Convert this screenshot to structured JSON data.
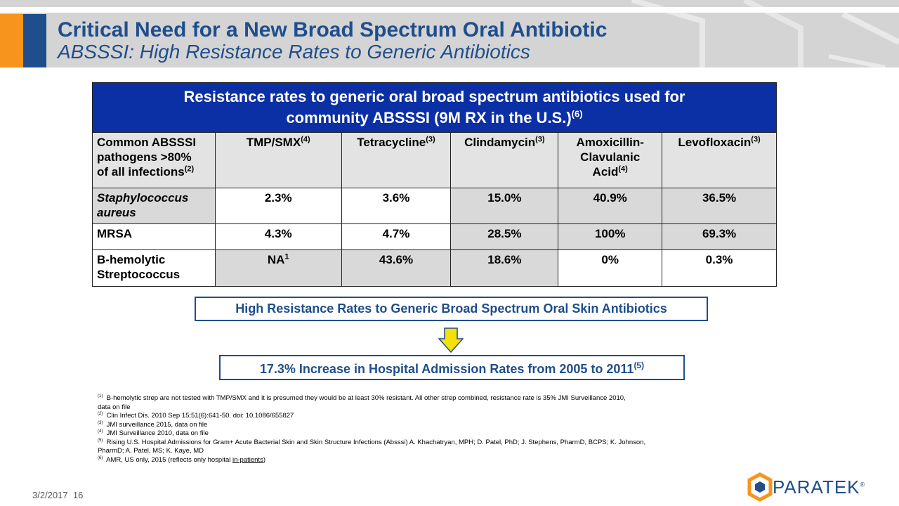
{
  "header": {
    "title": "Critical Need for a New Broad Spectrum Oral Antibiotic",
    "subtitle": "ABSSSI: High Resistance Rates to Generic Antibiotics"
  },
  "table": {
    "caption_line1": "Resistance rates to generic oral broad spectrum antibiotics used for",
    "caption_line2": "community ABSSSI (9M RX in the U.S.)",
    "caption_ref": "(6)",
    "pathogen_header": [
      "Common ABSSSI",
      "pathogens >80%",
      "of all infections"
    ],
    "pathogen_header_ref": "(2)",
    "columns": [
      {
        "name": "TMP/SMX",
        "ref": "(4)"
      },
      {
        "name": "Tetracycline",
        "ref": "(3)"
      },
      {
        "name": "Clindamycin",
        "ref": "(3)"
      },
      {
        "name_lines": [
          "Amoxicillin-",
          "Clavulanic",
          "Acid"
        ],
        "ref": "(4)"
      },
      {
        "name": "Levofloxacin",
        "ref": "(3)"
      }
    ],
    "rows": [
      {
        "pathogen_lines": [
          "Staphylococcus",
          "aureus"
        ],
        "values": [
          "2.3%",
          "3.6%",
          "15.0%",
          "40.9%",
          "36.5%"
        ]
      },
      {
        "pathogen_lines": [
          "MRSA"
        ],
        "values": [
          "4.3%",
          "4.7%",
          "28.5%",
          "100%",
          "69.3%"
        ]
      },
      {
        "pathogen_lines": [
          "B-hemolytic",
          "Streptococcus"
        ],
        "values": [
          "NA",
          "43.6%",
          "18.6%",
          "0%",
          "0.3%"
        ],
        "first_value_ref": "1"
      }
    ]
  },
  "callouts": {
    "resistance": "High Resistance Rates to Generic Broad Spectrum Oral Skin Antibiotics",
    "increase": "17.3% Increase in Hospital Admission Rates from 2005 to 2011",
    "increase_ref": "(5)"
  },
  "footnotes": [
    {
      "ref": "(1)",
      "text": "B-hemolytic strep are not tested with TMP/SMX and it is presumed they would be at least 30% resistant.  All other strep combined, resistance rate is 35% JMI Surveillance 2010,",
      "cont": "data on file"
    },
    {
      "ref": "(2)",
      "text": "Clin Infect Dis. 2010 Sep 15;51(6):641-50. doi: 10.1086/655827"
    },
    {
      "ref": "(3)",
      "text": "JMI surveillance 2015, data on file"
    },
    {
      "ref": "(4)",
      "text": "JMI Surveillance 2010, data on file"
    },
    {
      "ref": "(5)",
      "text": "Rising U.S. Hospital Admissions for Gram+ Acute Bacterial Skin and Skin Structure Infections (Absssi) A. Khachatryan, MPH; D. Patel, PhD; J. Stephens, PharmD, BCPS; K. Johnson,",
      "cont": "PharmD; A. Patel, MS; K. Kaye, MD"
    },
    {
      "ref": "(6)",
      "text": "AMR, US only, 2015 (reflects only hospital ",
      "underline": "in-patients",
      "after": ")"
    }
  ],
  "footer": {
    "date": "3/2/2017",
    "page": "16",
    "logo_text": "PARATEK",
    "logo_mark": "®"
  },
  "colors": {
    "brand_blue": "#1f4e8c",
    "table_header_blue": "#0b2fa5",
    "good_green": "#0ea24a",
    "bad_red": "#ee1c25",
    "accent_orange": "#f7941d",
    "arrow_yellow": "#f5e10a"
  }
}
